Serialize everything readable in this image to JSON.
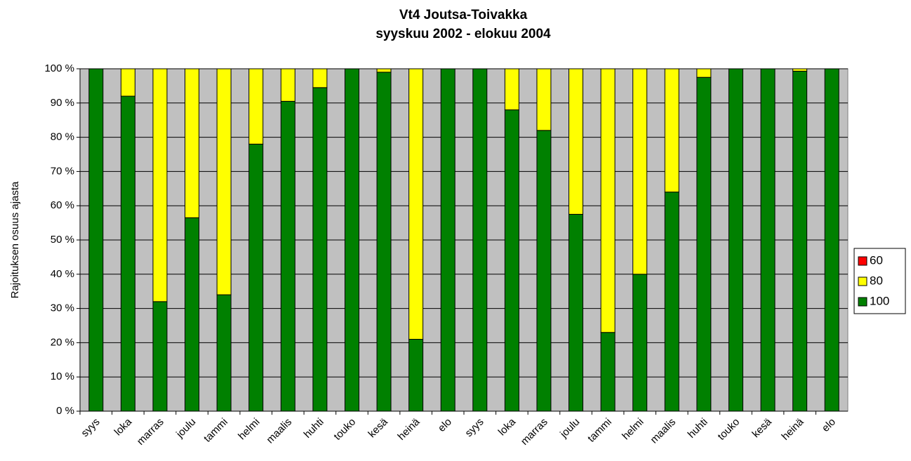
{
  "chart_data": {
    "type": "stacked_bar",
    "title": "Vt4 Joutsa-Toivakka",
    "subtitle": "syyskuu 2002 - elokuu 2004",
    "y_label": "Rajoituksen osuus ajasta",
    "categories": [
      "syys",
      "loka",
      "marras",
      "joulu",
      "tammi",
      "helmi",
      "maalis",
      "huhti",
      "touko",
      "kesä",
      "heinä",
      "elo",
      "syys",
      "loka",
      "marras",
      "joulu",
      "tammi",
      "helmi",
      "maalis",
      "huhti",
      "touko",
      "kesä",
      "heinä",
      "elo"
    ],
    "series": [
      {
        "name": "60",
        "color": "#ff0000",
        "values": [
          0,
          0,
          0,
          0,
          0,
          0,
          0,
          0,
          0,
          0,
          0,
          0,
          0,
          0,
          0,
          0,
          0,
          0,
          0,
          0,
          0,
          0,
          0,
          0
        ]
      },
      {
        "name": "80",
        "color": "#ffff00",
        "values": [
          0,
          8,
          68,
          43.5,
          66,
          22,
          9.5,
          5.5,
          0,
          1,
          79,
          0,
          0,
          12,
          18,
          42.5,
          77,
          60,
          36,
          2.5,
          0,
          0,
          0.7,
          0
        ]
      },
      {
        "name": "100",
        "color": "#008000",
        "values": [
          100,
          92,
          32,
          56.5,
          34,
          78,
          90.5,
          94.5,
          100,
          99,
          21,
          100,
          100,
          88,
          82,
          57.5,
          23,
          40,
          64,
          97.5,
          100,
          100,
          99.3,
          100
        ]
      }
    ],
    "ylim": [
      0,
      100
    ],
    "yticks": [
      {
        "value": 0,
        "label": "0 %"
      },
      {
        "value": 10,
        "label": "10 %"
      },
      {
        "value": 20,
        "label": "20 %"
      },
      {
        "value": 30,
        "label": "30 %"
      },
      {
        "value": 40,
        "label": "40 %"
      },
      {
        "value": 50,
        "label": "50 %"
      },
      {
        "value": 60,
        "label": "60 %"
      },
      {
        "value": 70,
        "label": "70 %"
      },
      {
        "value": 80,
        "label": "80 %"
      },
      {
        "value": 90,
        "label": "90 %"
      },
      {
        "value": 100,
        "label": "100 %"
      }
    ],
    "grid": true,
    "legend": "right",
    "plot_background": "#c0c0c0"
  }
}
